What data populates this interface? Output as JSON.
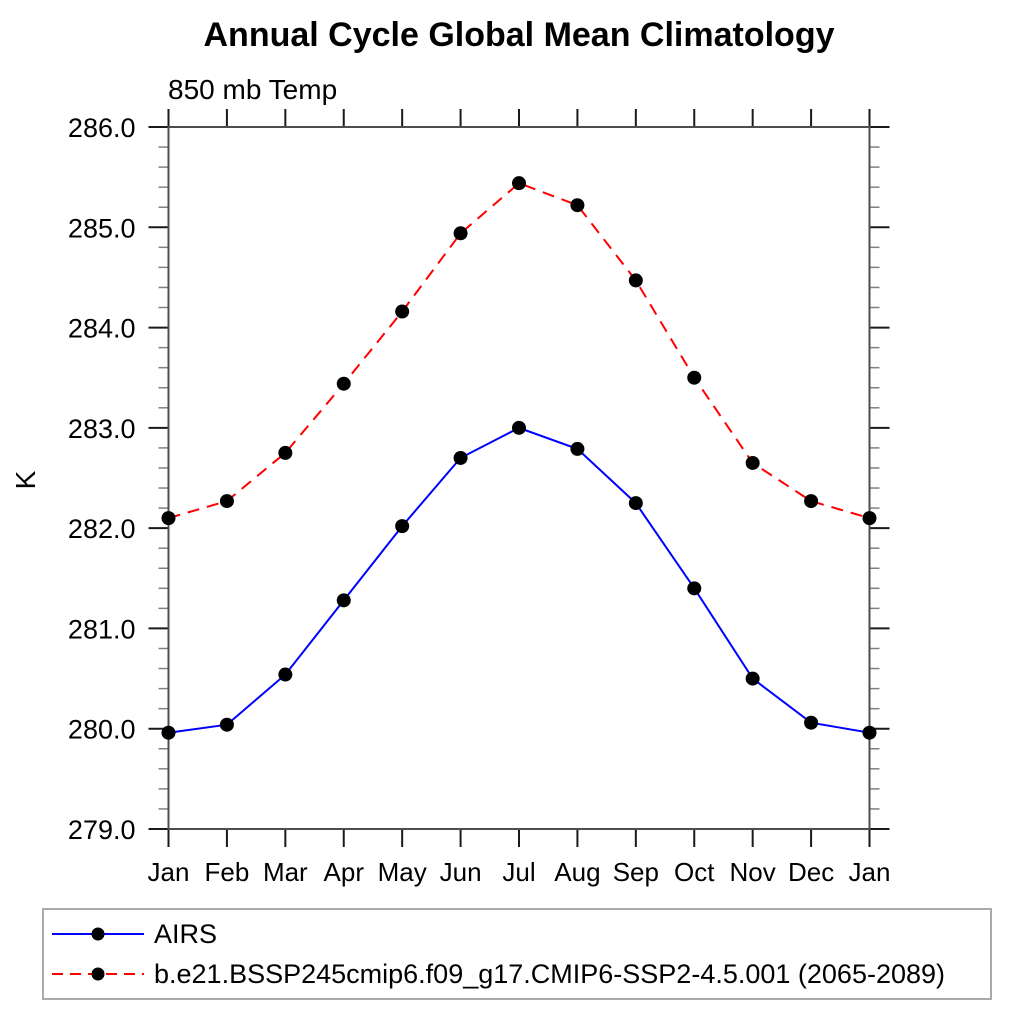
{
  "chart_data": {
    "type": "line",
    "title": "Annual Cycle Global Mean Climatology",
    "subtitle": "850 mb Temp",
    "ylabel": "K",
    "xlabel": "",
    "categories": [
      "Jan",
      "Feb",
      "Mar",
      "Apr",
      "May",
      "Jun",
      "Jul",
      "Aug",
      "Sep",
      "Oct",
      "Nov",
      "Dec",
      "Jan"
    ],
    "ylim": [
      279.0,
      286.0
    ],
    "ytick_interval": 1.0,
    "yminor_interval": 0.2,
    "ytick_labels": [
      "279.0",
      "280.0",
      "281.0",
      "282.0",
      "283.0",
      "284.0",
      "285.0",
      "286.0"
    ],
    "grid": false,
    "legend_position": "bottom-box",
    "series": [
      {
        "name": "AIRS",
        "color": "#0000ff",
        "line_style": "solid",
        "marker": "filled-circle",
        "marker_color": "#000000",
        "values": [
          279.96,
          280.04,
          280.54,
          281.28,
          282.02,
          282.7,
          283.0,
          282.79,
          282.25,
          281.4,
          280.5,
          280.06,
          279.96
        ]
      },
      {
        "name": "b.e21.BSSP245cmip6.f09_g17.CMIP6-SSP2-4.5.001 (2065-2089)",
        "color": "#ff0000",
        "line_style": "dashed",
        "marker": "filled-circle",
        "marker_color": "#000000",
        "values": [
          282.1,
          282.27,
          282.75,
          283.44,
          284.16,
          284.94,
          285.44,
          285.22,
          284.47,
          283.5,
          282.65,
          282.27,
          282.1
        ]
      }
    ],
    "axis_colors": {
      "box": "#4d4d4d",
      "major_tick": "#1a1a1a",
      "minor_tick": "#808080",
      "text": "#000000"
    }
  }
}
